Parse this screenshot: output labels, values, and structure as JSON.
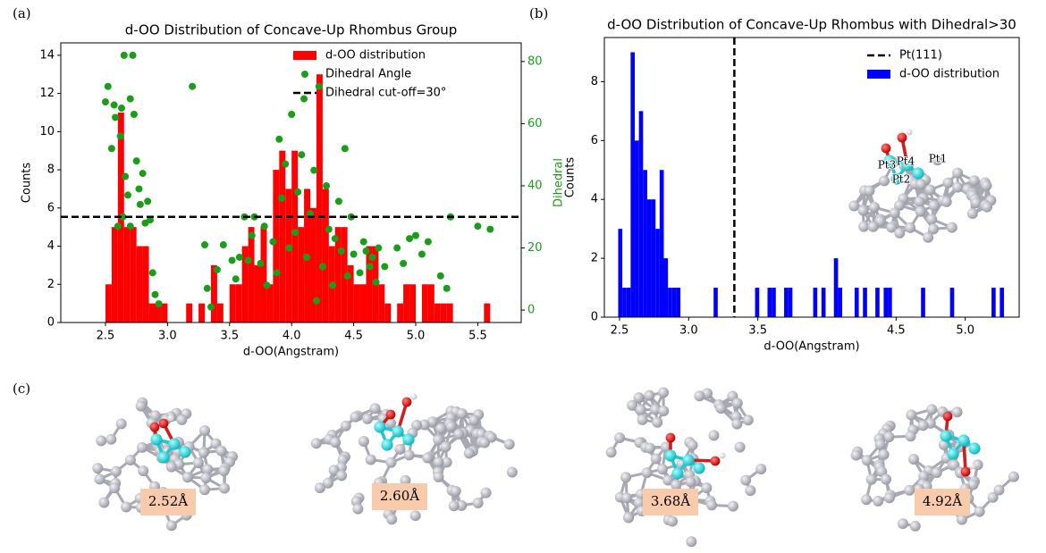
{
  "panel_labels": [
    "(a)",
    "(b)",
    "(c)"
  ],
  "inset_labels": [
    "Pt3",
    "Pt4",
    "Pt2",
    "Pt1"
  ],
  "structure_labels": [
    "2.52Å",
    "2.60Å",
    "3.68Å",
    "4.92Å"
  ],
  "chart_data": [
    {
      "type": "histogram",
      "title": "d-OO Distribution of Concave-Up Rhombus Group",
      "x_label": "d-OO(Angstram)",
      "y_label": "Counts",
      "y2_label": "Dihedral",
      "xlim": [
        2.14,
        5.85
      ],
      "ylim": [
        0,
        14.65
      ],
      "y2lim": [
        -4,
        86
      ],
      "xticks": [
        2.5,
        {
          "value": 3,
          "label": "3.0"
        },
        3.5,
        {
          "value": 4,
          "label": "4.0"
        },
        4.5,
        {
          "value": 5,
          "label": "5.0"
        },
        5.5
      ],
      "yticks": [
        0,
        2,
        4,
        6,
        8,
        10,
        12,
        14
      ],
      "y2ticks": [
        0,
        20,
        40,
        60,
        80
      ],
      "y2_color": "#1a9e1a",
      "legend": "upper right",
      "bins": [
        2.5,
        2.55,
        2.6,
        2.65,
        2.7,
        2.75,
        2.8,
        2.85,
        2.9,
        2.95,
        3.0,
        3.05,
        3.1,
        3.15,
        3.2,
        3.25,
        3.3,
        3.35,
        3.4,
        3.45,
        3.5,
        3.55,
        3.6,
        3.65,
        3.7,
        3.75,
        3.8,
        3.85,
        3.9,
        3.95,
        4.0,
        4.05,
        4.1,
        4.15,
        4.2,
        4.25,
        4.3,
        4.35,
        4.4,
        4.45,
        4.5,
        4.55,
        4.6,
        4.65,
        4.7,
        4.75,
        4.8,
        4.85,
        4.9,
        4.95,
        5.0,
        5.05,
        5.1,
        5.15,
        5.2,
        5.25,
        5.3,
        5.35,
        5.4,
        5.45,
        5.5,
        5.55,
        5.6,
        5.65
      ],
      "series": [
        {
          "name": "d-OO distribution",
          "type": "histogram",
          "color": "#ff0000",
          "values": [
            2,
            5,
            11,
            5,
            5,
            4,
            4,
            1,
            1,
            1,
            0,
            0,
            0,
            1,
            0,
            1,
            0,
            3,
            1,
            0,
            2,
            2,
            4,
            5,
            3,
            5,
            2,
            8,
            9,
            7,
            9,
            5,
            7,
            6,
            13,
            7,
            4,
            5,
            5,
            3,
            2,
            2,
            4,
            4,
            2,
            1,
            0,
            1,
            2,
            2,
            0,
            2,
            2,
            1,
            1,
            1,
            0,
            0,
            0,
            0,
            0,
            1,
            0
          ]
        },
        {
          "name": "Dihedral Angle",
          "type": "scatter",
          "color": "#1a9e1a",
          "axis": "y2",
          "x": [
            2.5,
            2.52,
            2.55,
            2.57,
            2.58,
            2.6,
            2.62,
            2.63,
            2.65,
            2.66,
            2.68,
            2.7,
            2.72,
            2.73,
            2.75,
            2.77,
            2.78,
            2.8,
            2.82,
            2.84,
            2.86,
            2.88,
            2.9,
            2.93,
            2.64,
            2.7,
            3.2,
            3.3,
            3.32,
            3.35,
            3.4,
            3.45,
            3.52,
            3.55,
            3.58,
            3.62,
            3.65,
            3.68,
            3.7,
            3.75,
            3.78,
            3.8,
            3.85,
            3.88,
            3.9,
            3.92,
            3.95,
            3.98,
            4.0,
            4.03,
            4.05,
            4.08,
            4.1,
            4.12,
            4.15,
            4.18,
            4.2,
            4.22,
            4.25,
            4.28,
            4.3,
            4.33,
            4.35,
            4.38,
            4.4,
            4.43,
            4.45,
            4.48,
            4.5,
            4.55,
            4.58,
            4.6,
            4.63,
            4.65,
            4.68,
            4.7,
            4.75,
            4.85,
            4.9,
            4.95,
            5.0,
            5.05,
            5.1,
            5.2,
            5.25,
            5.28,
            5.5,
            5.6
          ],
          "values": [
            67,
            72,
            52,
            66,
            62,
            27,
            56,
            65,
            82,
            43,
            37,
            27,
            82,
            63,
            48,
            39,
            34,
            44,
            28,
            35,
            29,
            12,
            5,
            2,
            30,
            68,
            72,
            21,
            7,
            1,
            13,
            21,
            16,
            10,
            17,
            30,
            16,
            24,
            30,
            15,
            27,
            8,
            22,
            12,
            55,
            36,
            47,
            20,
            63,
            25,
            38,
            50,
            68,
            17,
            31,
            45,
            3,
            72,
            14,
            40,
            26,
            8,
            23,
            35,
            19,
            52,
            11,
            30,
            18,
            12,
            22,
            19,
            14,
            17,
            9,
            20,
            14,
            20,
            15,
            23,
            24,
            18,
            22,
            11,
            7,
            30,
            27,
            26
          ]
        },
        {
          "name": "Dihedral cut-off=30°",
          "type": "hline",
          "color": "#000000",
          "axis": "y2",
          "value": 30
        }
      ]
    },
    {
      "type": "histogram",
      "title": "d-OO Distribution of Concave-Up Rhombus with Dihedral>30",
      "x_label": "d-OO(Angstram)",
      "y_label": "Counts",
      "xlim": [
        2.39,
        5.39
      ],
      "ylim": [
        0,
        9.5
      ],
      "xticks": [
        2.5,
        {
          "value": 3,
          "label": "3.0"
        },
        3.5,
        4.5,
        {
          "value": 5,
          "label": "5.0"
        }
      ],
      "yticks": [
        0,
        2,
        4,
        6,
        8
      ],
      "legend": "upper right",
      "bins": [
        2.49,
        2.52,
        2.55,
        2.58,
        2.61,
        2.64,
        2.67,
        2.7,
        2.73,
        2.76,
        2.79,
        2.82,
        2.85,
        2.88,
        2.91,
        2.94,
        2.97,
        3.0,
        3.03,
        3.06,
        3.09,
        3.12,
        3.15,
        3.18,
        3.21,
        3.24,
        3.27,
        3.3,
        3.33,
        3.36,
        3.39,
        3.42,
        3.45,
        3.48,
        3.51,
        3.54,
        3.57,
        3.6,
        3.63,
        3.66,
        3.69,
        3.72,
        3.75,
        3.78,
        3.81,
        3.84,
        3.87,
        3.9,
        3.93,
        3.96,
        3.99,
        4.02,
        4.05,
        4.08,
        4.11,
        4.14,
        4.17,
        4.2,
        4.23,
        4.26,
        4.29,
        4.32,
        4.35,
        4.38,
        4.41,
        4.44,
        4.47,
        4.5,
        4.53,
        4.56,
        4.59,
        4.62,
        4.65,
        4.68,
        4.71,
        4.74,
        4.77,
        4.8,
        4.83,
        4.86,
        4.89,
        4.92,
        4.95,
        4.98,
        5.01,
        5.04,
        5.07,
        5.1,
        5.13,
        5.16,
        5.19,
        5.22,
        5.25,
        5.28,
        5.31
      ],
      "series": [
        {
          "name": "Pt(111)",
          "type": "vline",
          "color": "#000000",
          "value": 3.33
        },
        {
          "name": "d-OO distribution",
          "type": "histogram",
          "color": "#0000ff",
          "values": [
            3,
            1,
            1,
            9,
            6,
            7,
            5,
            4,
            4,
            3,
            5,
            2,
            1,
            1,
            1,
            0,
            0,
            0,
            0,
            0,
            0,
            0,
            0,
            1,
            0,
            0,
            0,
            0,
            0,
            0,
            0,
            0,
            0,
            1,
            0,
            0,
            1,
            1,
            0,
            0,
            1,
            1,
            0,
            0,
            0,
            0,
            0,
            1,
            0,
            1,
            0,
            0,
            2,
            1,
            0,
            0,
            0,
            1,
            0,
            1,
            0,
            0,
            1,
            0,
            1,
            1,
            0,
            0,
            0,
            0,
            0,
            0,
            0,
            1,
            0,
            0,
            0,
            0,
            0,
            0,
            1,
            0,
            0,
            0,
            0,
            0,
            0,
            0,
            0,
            0,
            1,
            0,
            1,
            0
          ]
        }
      ]
    }
  ]
}
